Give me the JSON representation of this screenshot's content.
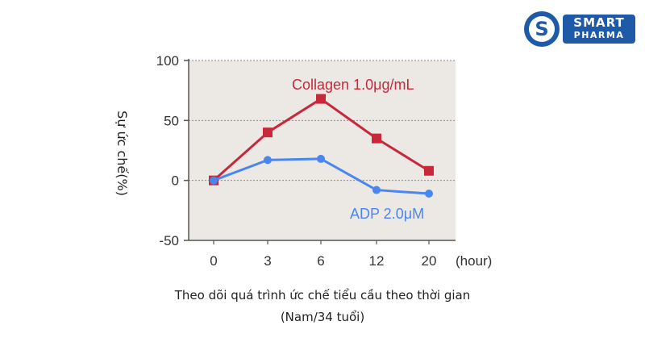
{
  "logo": {
    "line1": "SMART",
    "line2": "PHARMA",
    "brand_color": "#1e5aa8"
  },
  "caption": {
    "line1": "Theo dõi quá trình ức chế tiểu cầu theo thời gian",
    "line2": "(Nam/34 tuổi)"
  },
  "chart_data": {
    "type": "line",
    "categories": [
      "0",
      "3",
      "6",
      "12",
      "20"
    ],
    "x_unit_label": "(hour)",
    "ylabel": "Sự ức chế(%)",
    "ylim": [
      -50,
      100
    ],
    "yticks": [
      -50,
      0,
      50,
      100
    ],
    "grid": "horizontal-dotted",
    "plot_background": "#ece9e5",
    "series": [
      {
        "name": "Collagen 1.0μg/mL",
        "values": [
          0,
          40,
          68,
          35,
          8
        ],
        "color": "#c8283a",
        "marker": "square"
      },
      {
        "name": "ADP 2.0μM",
        "values": [
          0,
          17,
          18,
          -8,
          -11
        ],
        "color": "#4a86f0",
        "marker": "circle"
      }
    ]
  }
}
